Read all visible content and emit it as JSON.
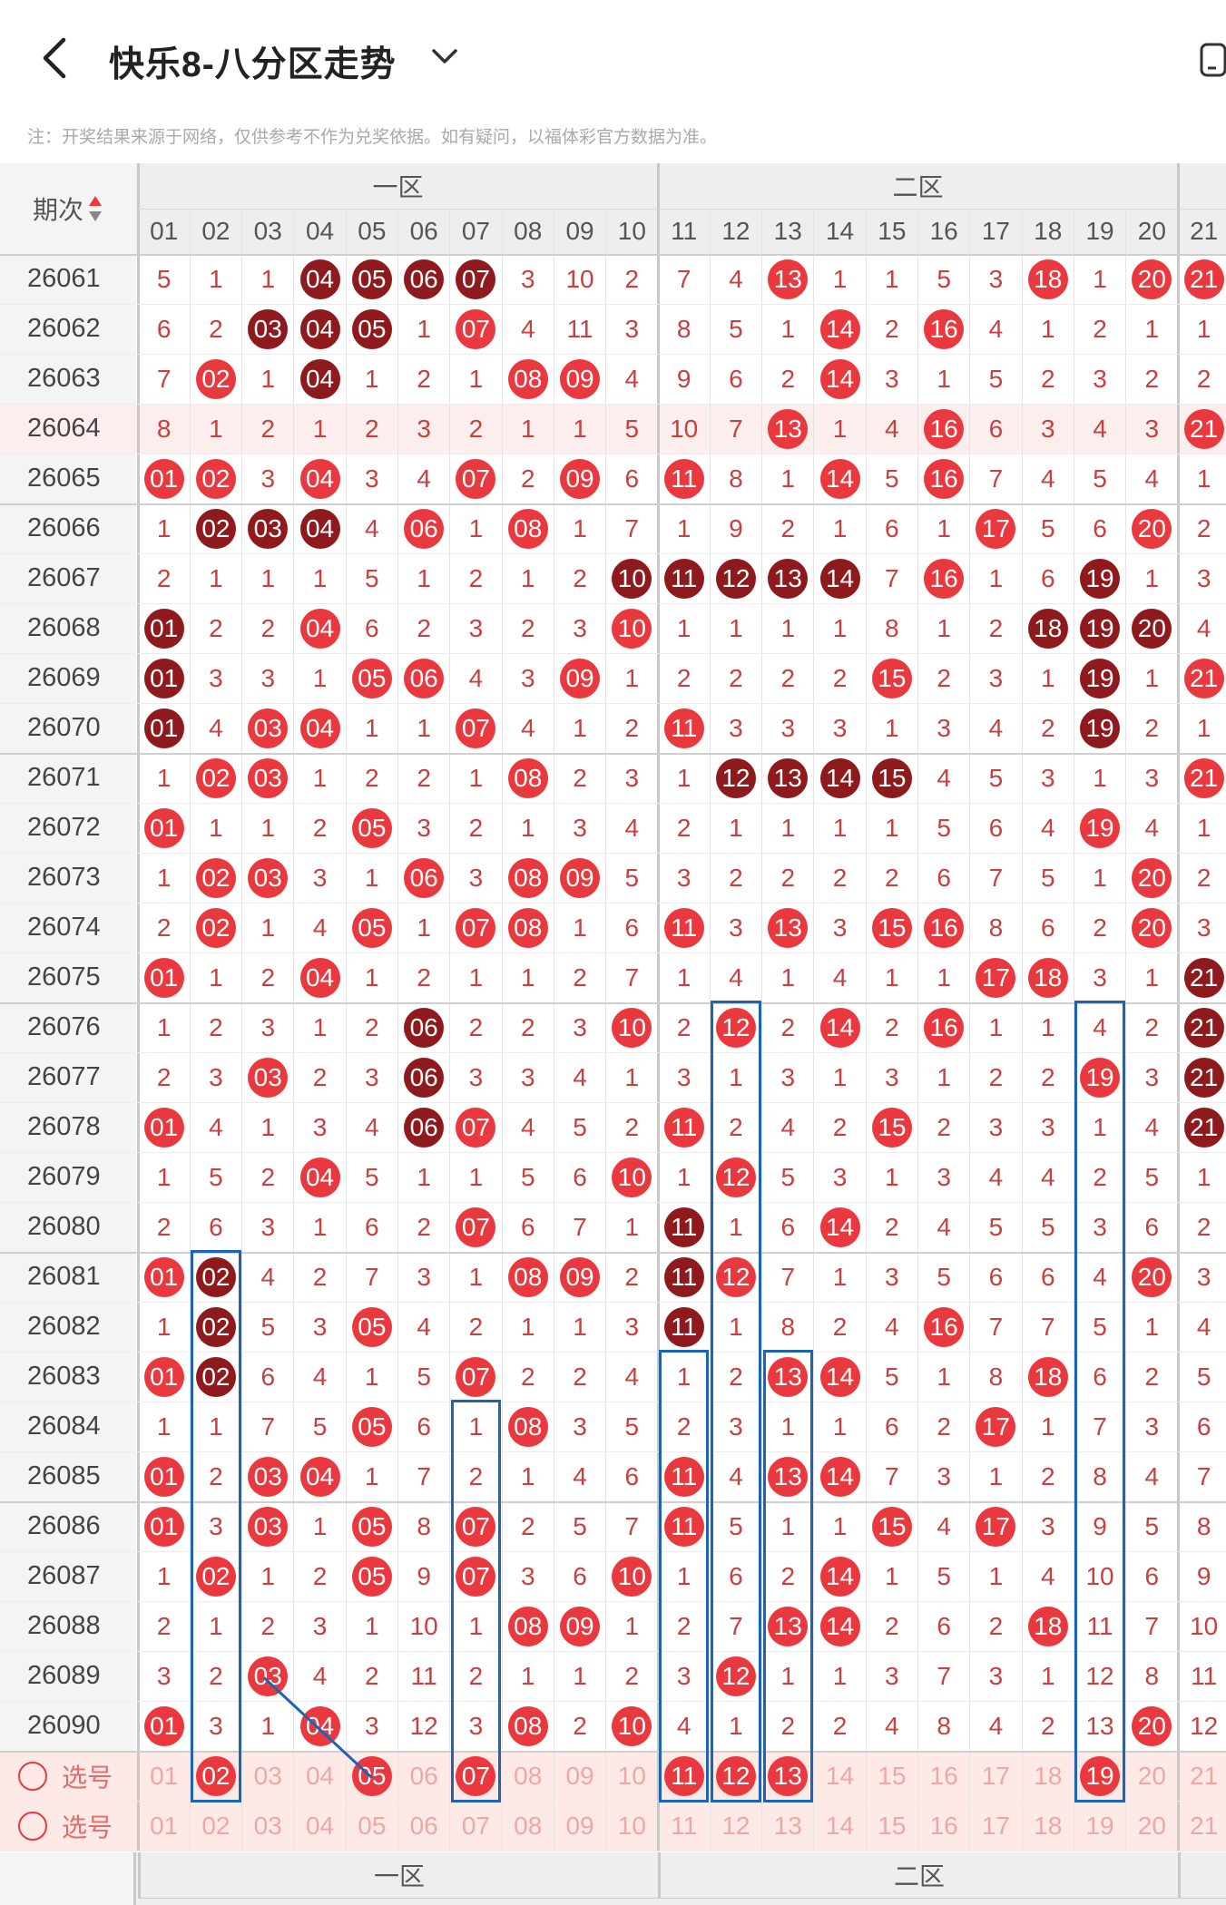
{
  "header": {
    "title": "快乐8-八分区走势"
  },
  "icons": {
    "back": "chevron-left-icon",
    "dropdown": "chevron-down-icon",
    "device": "phone-icon",
    "sort": "sort-arrows-icon",
    "radio": "radio-circle-icon"
  },
  "notice": "注：开奖结果来源于网络，仅供参考不作为兑奖依据。如有疑问，以福体彩官方数据为准。",
  "table": {
    "period_header": "期次",
    "zones": [
      "一区",
      "二区"
    ],
    "columns": [
      "01",
      "02",
      "03",
      "04",
      "05",
      "06",
      "07",
      "08",
      "09",
      "10",
      "11",
      "12",
      "13",
      "14",
      "15",
      "16",
      "17",
      "18",
      "19",
      "20",
      "21"
    ],
    "rows": [
      {
        "p": "26061",
        "c": [
          "5",
          "1",
          "1",
          "04",
          "05",
          "06",
          "07",
          "3",
          "10",
          "2",
          "7",
          "4",
          "13",
          "1",
          "1",
          "5",
          "3",
          "18",
          "1",
          "20",
          "21"
        ],
        "hit": [
          4,
          5,
          6,
          7,
          13,
          18,
          20,
          21
        ],
        "dark": [
          4,
          5,
          6,
          7
        ]
      },
      {
        "p": "26062",
        "c": [
          "6",
          "2",
          "03",
          "04",
          "05",
          "1",
          "07",
          "4",
          "11",
          "3",
          "8",
          "5",
          "1",
          "14",
          "2",
          "16",
          "4",
          "1",
          "2",
          "1",
          "1"
        ],
        "hit": [
          3,
          4,
          5,
          7,
          14,
          16
        ],
        "dark": [
          3,
          4,
          5
        ]
      },
      {
        "p": "26063",
        "c": [
          "7",
          "02",
          "1",
          "04",
          "1",
          "2",
          "1",
          "08",
          "09",
          "4",
          "9",
          "6",
          "2",
          "14",
          "3",
          "1",
          "5",
          "2",
          "3",
          "2",
          "2"
        ],
        "hit": [
          2,
          4,
          8,
          9,
          14
        ],
        "dark": [
          4
        ]
      },
      {
        "p": "26064",
        "c": [
          "8",
          "1",
          "2",
          "1",
          "2",
          "3",
          "2",
          "1",
          "1",
          "5",
          "10",
          "7",
          "13",
          "1",
          "4",
          "16",
          "6",
          "3",
          "4",
          "3",
          "21"
        ],
        "hit": [
          13,
          16,
          21
        ],
        "dark": []
      },
      {
        "p": "26065",
        "c": [
          "01",
          "02",
          "3",
          "04",
          "3",
          "4",
          "07",
          "2",
          "09",
          "6",
          "11",
          "8",
          "1",
          "14",
          "5",
          "16",
          "7",
          "4",
          "5",
          "4",
          "1"
        ],
        "hit": [
          1,
          2,
          4,
          7,
          9,
          11,
          14,
          16
        ],
        "dark": []
      },
      {
        "p": "26066",
        "c": [
          "1",
          "02",
          "03",
          "04",
          "4",
          "06",
          "1",
          "08",
          "1",
          "7",
          "1",
          "9",
          "2",
          "1",
          "6",
          "1",
          "17",
          "5",
          "6",
          "20",
          "2"
        ],
        "hit": [
          2,
          3,
          4,
          6,
          8,
          17,
          20
        ],
        "dark": [
          2,
          3,
          4
        ]
      },
      {
        "p": "26067",
        "c": [
          "2",
          "1",
          "1",
          "1",
          "5",
          "1",
          "2",
          "1",
          "2",
          "10",
          "11",
          "12",
          "13",
          "14",
          "7",
          "16",
          "1",
          "6",
          "19",
          "1",
          "3"
        ],
        "hit": [
          10,
          11,
          12,
          13,
          14,
          16,
          19
        ],
        "dark": [
          10,
          11,
          12,
          13,
          14,
          19
        ]
      },
      {
        "p": "26068",
        "c": [
          "01",
          "2",
          "2",
          "04",
          "6",
          "2",
          "3",
          "2",
          "3",
          "10",
          "1",
          "1",
          "1",
          "1",
          "8",
          "1",
          "2",
          "18",
          "19",
          "20",
          "4"
        ],
        "hit": [
          1,
          4,
          10,
          18,
          19,
          20
        ],
        "dark": [
          1,
          18,
          19,
          20
        ]
      },
      {
        "p": "26069",
        "c": [
          "01",
          "3",
          "3",
          "1",
          "05",
          "06",
          "4",
          "3",
          "09",
          "1",
          "2",
          "2",
          "2",
          "2",
          "15",
          "2",
          "3",
          "1",
          "19",
          "1",
          "21"
        ],
        "hit": [
          1,
          5,
          6,
          9,
          15,
          19,
          21
        ],
        "dark": [
          1,
          19
        ]
      },
      {
        "p": "26070",
        "c": [
          "01",
          "4",
          "03",
          "04",
          "1",
          "1",
          "07",
          "4",
          "1",
          "2",
          "11",
          "3",
          "3",
          "3",
          "1",
          "3",
          "4",
          "2",
          "19",
          "2",
          "1"
        ],
        "hit": [
          1,
          3,
          4,
          7,
          11,
          19
        ],
        "dark": [
          1,
          19
        ]
      },
      {
        "p": "26071",
        "c": [
          "1",
          "02",
          "03",
          "1",
          "2",
          "2",
          "1",
          "08",
          "2",
          "3",
          "1",
          "12",
          "13",
          "14",
          "15",
          "4",
          "5",
          "3",
          "1",
          "3",
          "21"
        ],
        "hit": [
          2,
          3,
          8,
          12,
          13,
          14,
          15,
          21
        ],
        "dark": [
          12,
          13,
          14,
          15
        ]
      },
      {
        "p": "26072",
        "c": [
          "01",
          "1",
          "1",
          "2",
          "05",
          "3",
          "2",
          "1",
          "3",
          "4",
          "2",
          "1",
          "1",
          "1",
          "1",
          "5",
          "6",
          "4",
          "19",
          "4",
          "1"
        ],
        "hit": [
          1,
          5,
          19
        ],
        "dark": []
      },
      {
        "p": "26073",
        "c": [
          "1",
          "02",
          "03",
          "3",
          "1",
          "06",
          "3",
          "08",
          "09",
          "5",
          "3",
          "2",
          "2",
          "2",
          "2",
          "6",
          "7",
          "5",
          "1",
          "20",
          "2"
        ],
        "hit": [
          2,
          3,
          6,
          8,
          9,
          20
        ],
        "dark": []
      },
      {
        "p": "26074",
        "c": [
          "2",
          "02",
          "1",
          "4",
          "05",
          "1",
          "07",
          "08",
          "1",
          "6",
          "11",
          "3",
          "13",
          "3",
          "15",
          "16",
          "8",
          "6",
          "2",
          "20",
          "3"
        ],
        "hit": [
          2,
          5,
          7,
          8,
          11,
          13,
          15,
          16,
          20
        ],
        "dark": []
      },
      {
        "p": "26075",
        "c": [
          "01",
          "1",
          "2",
          "04",
          "1",
          "2",
          "1",
          "1",
          "2",
          "7",
          "1",
          "4",
          "1",
          "4",
          "1",
          "1",
          "17",
          "18",
          "3",
          "1",
          "21"
        ],
        "hit": [
          1,
          4,
          17,
          18,
          21
        ],
        "dark": [
          21
        ]
      },
      {
        "p": "26076",
        "c": [
          "1",
          "2",
          "3",
          "1",
          "2",
          "06",
          "2",
          "2",
          "3",
          "10",
          "2",
          "12",
          "2",
          "14",
          "2",
          "16",
          "1",
          "1",
          "4",
          "2",
          "21"
        ],
        "hit": [
          6,
          10,
          12,
          14,
          16,
          21
        ],
        "dark": [
          6,
          21
        ]
      },
      {
        "p": "26077",
        "c": [
          "2",
          "3",
          "03",
          "2",
          "3",
          "06",
          "3",
          "3",
          "4",
          "1",
          "3",
          "1",
          "3",
          "1",
          "3",
          "1",
          "2",
          "2",
          "19",
          "3",
          "21"
        ],
        "hit": [
          3,
          6,
          19,
          21
        ],
        "dark": [
          6,
          21
        ]
      },
      {
        "p": "26078",
        "c": [
          "01",
          "4",
          "1",
          "3",
          "4",
          "06",
          "07",
          "4",
          "5",
          "2",
          "11",
          "2",
          "4",
          "2",
          "15",
          "2",
          "3",
          "3",
          "1",
          "4",
          "21"
        ],
        "hit": [
          1,
          6,
          7,
          11,
          15,
          21
        ],
        "dark": [
          6,
          21
        ]
      },
      {
        "p": "26079",
        "c": [
          "1",
          "5",
          "2",
          "04",
          "5",
          "1",
          "1",
          "5",
          "6",
          "10",
          "1",
          "12",
          "5",
          "3",
          "1",
          "3",
          "4",
          "4",
          "2",
          "5",
          "1"
        ],
        "hit": [
          4,
          10,
          12
        ],
        "dark": []
      },
      {
        "p": "26080",
        "c": [
          "2",
          "6",
          "3",
          "1",
          "6",
          "2",
          "07",
          "6",
          "7",
          "1",
          "11",
          "1",
          "6",
          "14",
          "2",
          "4",
          "5",
          "5",
          "3",
          "6",
          "2"
        ],
        "hit": [
          7,
          11,
          14
        ],
        "dark": [
          11
        ]
      },
      {
        "p": "26081",
        "c": [
          "01",
          "02",
          "4",
          "2",
          "7",
          "3",
          "1",
          "08",
          "09",
          "2",
          "11",
          "12",
          "7",
          "1",
          "3",
          "5",
          "6",
          "6",
          "4",
          "20",
          "3"
        ],
        "hit": [
          1,
          2,
          8,
          9,
          11,
          12,
          20
        ],
        "dark": [
          2,
          11
        ]
      },
      {
        "p": "26082",
        "c": [
          "1",
          "02",
          "5",
          "3",
          "05",
          "4",
          "2",
          "1",
          "1",
          "3",
          "11",
          "1",
          "8",
          "2",
          "4",
          "16",
          "7",
          "7",
          "5",
          "1",
          "4"
        ],
        "hit": [
          2,
          5,
          11,
          16
        ],
        "dark": [
          2,
          11
        ]
      },
      {
        "p": "26083",
        "c": [
          "01",
          "02",
          "6",
          "4",
          "1",
          "5",
          "07",
          "2",
          "2",
          "4",
          "1",
          "2",
          "13",
          "14",
          "5",
          "1",
          "8",
          "18",
          "6",
          "2",
          "5"
        ],
        "hit": [
          1,
          2,
          7,
          13,
          14,
          18
        ],
        "dark": [
          2
        ]
      },
      {
        "p": "26084",
        "c": [
          "1",
          "1",
          "7",
          "5",
          "05",
          "6",
          "1",
          "08",
          "3",
          "5",
          "2",
          "3",
          "1",
          "1",
          "6",
          "2",
          "17",
          "1",
          "7",
          "3",
          "6"
        ],
        "hit": [
          5,
          8,
          17
        ],
        "dark": []
      },
      {
        "p": "26085",
        "c": [
          "01",
          "2",
          "03",
          "04",
          "1",
          "7",
          "2",
          "1",
          "4",
          "6",
          "11",
          "4",
          "13",
          "14",
          "7",
          "3",
          "1",
          "2",
          "8",
          "4",
          "7"
        ],
        "hit": [
          1,
          3,
          4,
          11,
          13,
          14
        ],
        "dark": []
      },
      {
        "p": "26086",
        "c": [
          "01",
          "3",
          "03",
          "1",
          "05",
          "8",
          "07",
          "2",
          "5",
          "7",
          "11",
          "5",
          "1",
          "1",
          "15",
          "4",
          "17",
          "3",
          "9",
          "5",
          "8"
        ],
        "hit": [
          1,
          3,
          5,
          7,
          11,
          15,
          17
        ],
        "dark": []
      },
      {
        "p": "26087",
        "c": [
          "1",
          "02",
          "1",
          "2",
          "05",
          "9",
          "07",
          "3",
          "6",
          "10",
          "1",
          "6",
          "2",
          "14",
          "1",
          "5",
          "1",
          "4",
          "10",
          "6",
          "9"
        ],
        "hit": [
          2,
          5,
          7,
          10,
          14
        ],
        "dark": []
      },
      {
        "p": "26088",
        "c": [
          "2",
          "1",
          "2",
          "3",
          "1",
          "10",
          "1",
          "08",
          "09",
          "1",
          "2",
          "7",
          "13",
          "14",
          "2",
          "6",
          "2",
          "18",
          "11",
          "7",
          "10"
        ],
        "hit": [
          8,
          9,
          13,
          14,
          18
        ],
        "dark": []
      },
      {
        "p": "26089",
        "c": [
          "3",
          "2",
          "03",
          "4",
          "2",
          "11",
          "2",
          "1",
          "1",
          "2",
          "3",
          "12",
          "1",
          "1",
          "3",
          "7",
          "3",
          "1",
          "12",
          "8",
          "11"
        ],
        "hit": [
          3,
          12
        ],
        "dark": []
      },
      {
        "p": "26090",
        "c": [
          "01",
          "3",
          "1",
          "04",
          "3",
          "12",
          "3",
          "08",
          "2",
          "10",
          "4",
          "1",
          "2",
          "2",
          "4",
          "8",
          "4",
          "2",
          "13",
          "20",
          "12"
        ],
        "hit": [
          1,
          4,
          8,
          10,
          20
        ],
        "dark": []
      }
    ],
    "select_rows": [
      {
        "label": "选号",
        "picked": [
          2,
          5,
          7,
          11,
          12,
          13,
          19
        ]
      },
      {
        "label": "选号",
        "picked": []
      }
    ]
  },
  "colors": {
    "red": "#e9393e",
    "dark": "#8e1a1d",
    "num": "#c8403f",
    "header_bg": "#eeeeee",
    "pink_row": "#fdeeee",
    "select_bg": "#fde9e6",
    "box": "#1d64b3"
  }
}
